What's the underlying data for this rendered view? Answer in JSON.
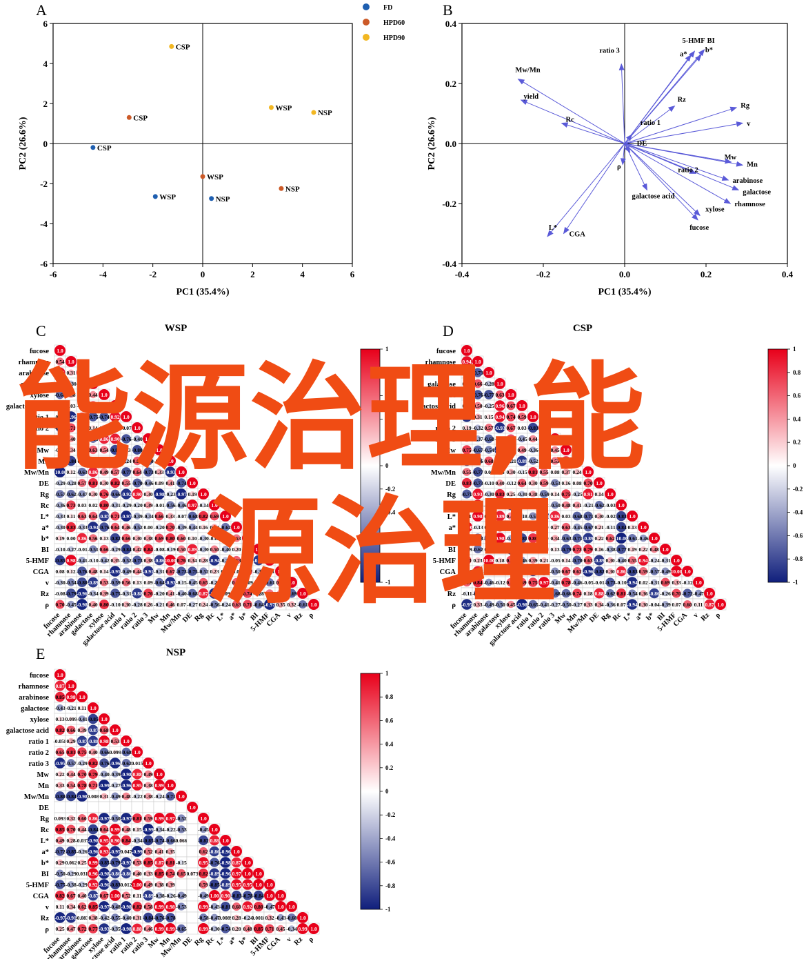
{
  "panels": {
    "A": "A",
    "B": "B",
    "C": "C",
    "D": "D",
    "E": "E"
  },
  "chart_data": [
    {
      "id": "A",
      "type": "scatter",
      "xlabel": "PC1 (35.4%)",
      "ylabel": "PC2 (26.6%)",
      "xlim": [
        -6,
        6
      ],
      "ylim": [
        -6,
        6
      ],
      "xticks": [
        -6,
        -4,
        -2,
        0,
        2,
        4,
        6
      ],
      "yticks": [
        -6,
        -4,
        -2,
        0,
        2,
        4,
        6
      ],
      "legend_position": "top-right",
      "series": [
        {
          "name": "FD",
          "color": "#1f5fb0",
          "points": [
            {
              "label": "CSP",
              "x": -4.4,
              "y": -0.2
            },
            {
              "label": "WSP",
              "x": -1.9,
              "y": -2.65
            },
            {
              "label": "NSP",
              "x": 0.35,
              "y": -2.75
            }
          ]
        },
        {
          "name": "HPD60",
          "color": "#cc5a28",
          "points": [
            {
              "label": "CSP",
              "x": -2.95,
              "y": 1.3
            },
            {
              "label": "WSP",
              "x": 0.0,
              "y": -1.65
            },
            {
              "label": "NSP",
              "x": 3.15,
              "y": -2.25
            }
          ]
        },
        {
          "name": "HPD90",
          "color": "#f2b722",
          "points": [
            {
              "label": "CSP",
              "x": -1.25,
              "y": 4.85
            },
            {
              "label": "WSP",
              "x": 2.75,
              "y": 1.8
            },
            {
              "label": "NSP",
              "x": 4.45,
              "y": 1.55
            }
          ]
        }
      ]
    },
    {
      "id": "B",
      "type": "biplot",
      "xlabel": "PC1 (35.4%)",
      "ylabel": "PC2 (26.6%)",
      "xlim": [
        -0.4,
        0.4
      ],
      "ylim": [
        -0.4,
        0.4
      ],
      "xticks": [
        -0.4,
        -0.2,
        0.0,
        0.2,
        0.4
      ],
      "yticks": [
        -0.4,
        -0.2,
        0.0,
        0.2,
        0.4
      ],
      "vectors": [
        {
          "label": "5-HMF",
          "x": 0.172,
          "y": 0.308
        },
        {
          "label": "BI",
          "x": 0.196,
          "y": 0.313
        },
        {
          "label": "a*",
          "x": 0.163,
          "y": 0.295
        },
        {
          "label": "b*",
          "x": 0.188,
          "y": 0.295
        },
        {
          "label": "ratio 3",
          "x": -0.008,
          "y": 0.265
        },
        {
          "label": "Mw/Mn",
          "x": -0.262,
          "y": 0.215
        },
        {
          "label": "yield",
          "x": -0.255,
          "y": 0.145
        },
        {
          "label": "Rc",
          "x": -0.155,
          "y": 0.068
        },
        {
          "label": "Rz",
          "x": 0.123,
          "y": 0.125
        },
        {
          "label": "Rg",
          "x": 0.275,
          "y": 0.12
        },
        {
          "label": "v",
          "x": 0.29,
          "y": 0.068
        },
        {
          "label": "ratio 1",
          "x": 0.018,
          "y": 0.03
        },
        {
          "label": "DE",
          "x": 0.013,
          "y": -0.03
        },
        {
          "label": "ρ",
          "x": -0.005,
          "y": -0.07
        },
        {
          "label": "Mw",
          "x": 0.262,
          "y": -0.062
        },
        {
          "label": "Mn",
          "x": 0.29,
          "y": -0.072
        },
        {
          "label": "ratio 2",
          "x": 0.175,
          "y": -0.1
        },
        {
          "label": "arabinose",
          "x": 0.255,
          "y": -0.122
        },
        {
          "label": "galactose",
          "x": 0.28,
          "y": -0.155
        },
        {
          "label": "galactose acid",
          "x": 0.055,
          "y": -0.155
        },
        {
          "label": "rhamnose",
          "x": 0.26,
          "y": -0.2
        },
        {
          "label": "xylose",
          "x": 0.185,
          "y": -0.24
        },
        {
          "label": "fucose",
          "x": 0.18,
          "y": -0.255
        },
        {
          "label": "L*",
          "x": -0.19,
          "y": -0.31
        },
        {
          "label": "CGA",
          "x": -0.15,
          "y": -0.3
        }
      ]
    },
    {
      "id": "C",
      "type": "heatmap",
      "title": "WSP",
      "variables": [
        "fucose",
        "rhamnose",
        "arabinose",
        "galactose",
        "xylose",
        "galactose acid",
        "ratio 1",
        "ratio 2",
        "ratio 3",
        "Mw",
        "Mn",
        "Mw/Mn",
        "DE",
        "Rg",
        "Rc",
        "L*",
        "a*",
        "b*",
        "BI",
        "5-HMF",
        "CGA",
        "v",
        "Rz",
        "ρ"
      ],
      "colorbar": {
        "range": [
          -1,
          1
        ],
        "ticks": [
          1,
          0.8,
          0.6,
          0.4,
          0.2,
          0,
          -0.2,
          -0.4,
          -0.6,
          -0.8,
          -1
        ]
      }
    },
    {
      "id": "D",
      "type": "heatmap",
      "title": "CSP",
      "variables": [
        "fucose",
        "rhamnose",
        "arabinose",
        "galactose",
        "xylose",
        "galactose acid",
        "ratio 1",
        "ratio 2",
        "ratio 3",
        "Mw",
        "Mn",
        "Mw/Mn",
        "DE",
        "Rg",
        "Rc",
        "L*",
        "a*",
        "b*",
        "BI",
        "5-HMF",
        "CGA",
        "v",
        "Rz",
        "ρ"
      ],
      "colorbar": {
        "range": [
          -1,
          1
        ],
        "ticks": [
          1,
          0.8,
          0.6,
          0.4,
          0.2,
          0,
          -0.2,
          -0.4,
          -0.6,
          -0.8,
          -1
        ]
      }
    },
    {
      "id": "E",
      "type": "heatmap",
      "title": "NSP",
      "variables": [
        "fucose",
        "rhamnose",
        "arabinose",
        "galactose",
        "xylose",
        "galactose acid",
        "ratio 1",
        "ratio 2",
        "ratio 3",
        "Mw",
        "Mn",
        "Mw/Mn",
        "DE",
        "Rg",
        "Rc",
        "L*",
        "a*",
        "b*",
        "BI",
        "5-HMF",
        "CGA",
        "v",
        "Rz",
        "ρ"
      ],
      "colorbar": {
        "range": [
          -1,
          1
        ],
        "ticks": [
          1,
          0.8,
          0.6,
          0.4,
          0.2,
          0,
          -0.2,
          -0.4,
          -0.6,
          -0.8,
          -1
        ]
      },
      "rows": [
        [
          "1.0"
        ],
        [
          "0.87",
          "1.0"
        ],
        [
          "0.85",
          "0.98",
          "1.0"
        ],
        [
          "-0.43",
          "-0.21",
          "0.11",
          "1.0"
        ],
        [
          "0.13",
          "0.099",
          "-0.41",
          "-0.85",
          "1.0"
        ],
        [
          "0.82",
          "0.66",
          "0.39",
          "-0.87",
          "0.68",
          "1.0"
        ],
        [
          "-0.058",
          "0.29",
          "-0.87",
          "-0.88",
          "0.98",
          "0.53",
          "1.0"
        ],
        [
          "0.65",
          "0.81",
          "0.75",
          "0.40",
          "-0.66",
          "0.099",
          "-0.68",
          "0.79",
          "1.0"
        ],
        [
          "-0.95",
          "-0.57",
          "-0.29",
          "0.82",
          "-0.76",
          "-0.96",
          "-0.62",
          "0.015",
          "1.0"
        ],
        [
          "0.22",
          "0.44",
          "0.70",
          "0.79",
          "-0.40",
          "-0.39",
          "-0.98",
          "0.88",
          "0.49",
          "1.0"
        ],
        [
          "0.33",
          "0.54",
          "0.78",
          "0.71",
          "-0.99",
          "-0.27",
          "-0.96",
          "0.95",
          "0.38",
          "0.99",
          "1.0"
        ],
        [
          "-0.80",
          "-0.84",
          "-0.98",
          "0.008",
          "0.31",
          "-0.49",
          "0.48",
          "-0.22",
          "0.38",
          "-0.24",
          "-0.71",
          "1.0"
        ],
        [],
        [
          "0.093",
          "0.32",
          "0.60",
          "0.86",
          "-0.97",
          "-0.50",
          "-0.97",
          "0.81",
          "0.59",
          "0.99",
          "0.97",
          "-0.52",
          "",
          "1.0"
        ],
        [
          "0.85",
          "0.70",
          "0.44",
          "-0.84",
          "0.64",
          "0.99",
          "0.48",
          "0.15",
          "-0.99",
          "-0.34",
          "-0.22",
          "-0.53",
          "",
          "-0.45",
          "1.0"
        ],
        [
          "0.49",
          "0.28",
          "-0.037",
          "-0.98",
          "0.95",
          "0.90",
          "0.84",
          "-0.34",
          "-0.85",
          "-0.74",
          "-0.66",
          "0.066",
          "",
          "-0.82",
          "0.88",
          "1.0"
        ],
        [
          "-0.72",
          "-0.85",
          "-0.26",
          "-0.96",
          "0.93",
          "-0.95",
          "0.047",
          "-0.99",
          "0.52",
          "0.41",
          "0.35",
          "",
          "",
          "0.62",
          "-0.86",
          "-0.96",
          "1.0"
        ],
        [
          "0.29",
          "0.062",
          "0.25",
          "0.99",
          "-0.85",
          "-0.79",
          "-0.93",
          "0.53",
          "0.85",
          "0.87",
          "0.81",
          "-0.15",
          "",
          "0.95",
          "-0.76",
          "-0.98",
          "0.87",
          "1.0"
        ],
        [
          "-0.50",
          "-0.29",
          "0.031",
          "0.96",
          "-0.98",
          "-0.86",
          "-0.86",
          "0.40",
          "0.33",
          "0.85",
          "0.74",
          "0.65",
          "0.073",
          "0.82",
          "-0.89",
          "-0.96",
          "0.97",
          "1.0"
        ],
        [
          "-0.75",
          "-0.38",
          "-0.29",
          "0.92",
          "-0.96",
          "-0.83",
          "0.012",
          "1.00",
          "0.49",
          "0.38",
          "0.39",
          "",
          "",
          "0.59",
          "-0.85",
          "-0.89",
          "0.95",
          "0.95",
          "1.0"
        ],
        [
          "0.82",
          "0.67",
          "0.40",
          "-0.87",
          "0.67",
          "1.00",
          "0.52",
          "0.11",
          "-0.89",
          "-0.38",
          "-0.26",
          "-0.49",
          "",
          "-0.49",
          "1.00",
          "0.90",
          "-0.83",
          "-0.78",
          "-0.84",
          "1.0"
        ],
        [
          "0.11",
          "0.34",
          "0.62",
          "0.85",
          "-0.97",
          "-0.48",
          "-0.98",
          "0.82",
          "0.58",
          "0.99",
          "0.98",
          "-0.53",
          "",
          "0.99",
          "-0.43",
          "-0.81",
          "0.60",
          "0.92",
          "0.80",
          "-0.47",
          "1.0"
        ],
        [
          "-0.97",
          "-0.91",
          "-0.083",
          "0.38",
          "-0.42",
          "-0.55",
          "-0.40",
          "0.31",
          "-0.84",
          "-0.76",
          "-0.78",
          "",
          "",
          "-0.58",
          "-0.47",
          "0.0089",
          "0.28",
          "-0.24",
          "0.0018",
          "0.32",
          "-0.43",
          "-0.60",
          "1.0"
        ],
        [
          "0.25",
          "0.47",
          "0.72",
          "0.77",
          "-0.93",
          "-0.35",
          "-0.98",
          "0.88",
          "0.46",
          "0.99",
          "0.99",
          "-0.65",
          "",
          "0.99",
          "-0.30",
          "-0.74",
          "0.20",
          "0.48",
          "0.85",
          "0.71",
          "0.45",
          "-0.34",
          "0.99",
          "1.0"
        ]
      ]
    }
  ],
  "watermark": {
    "line1": "能源治理,能",
    "line2": "源治理"
  }
}
